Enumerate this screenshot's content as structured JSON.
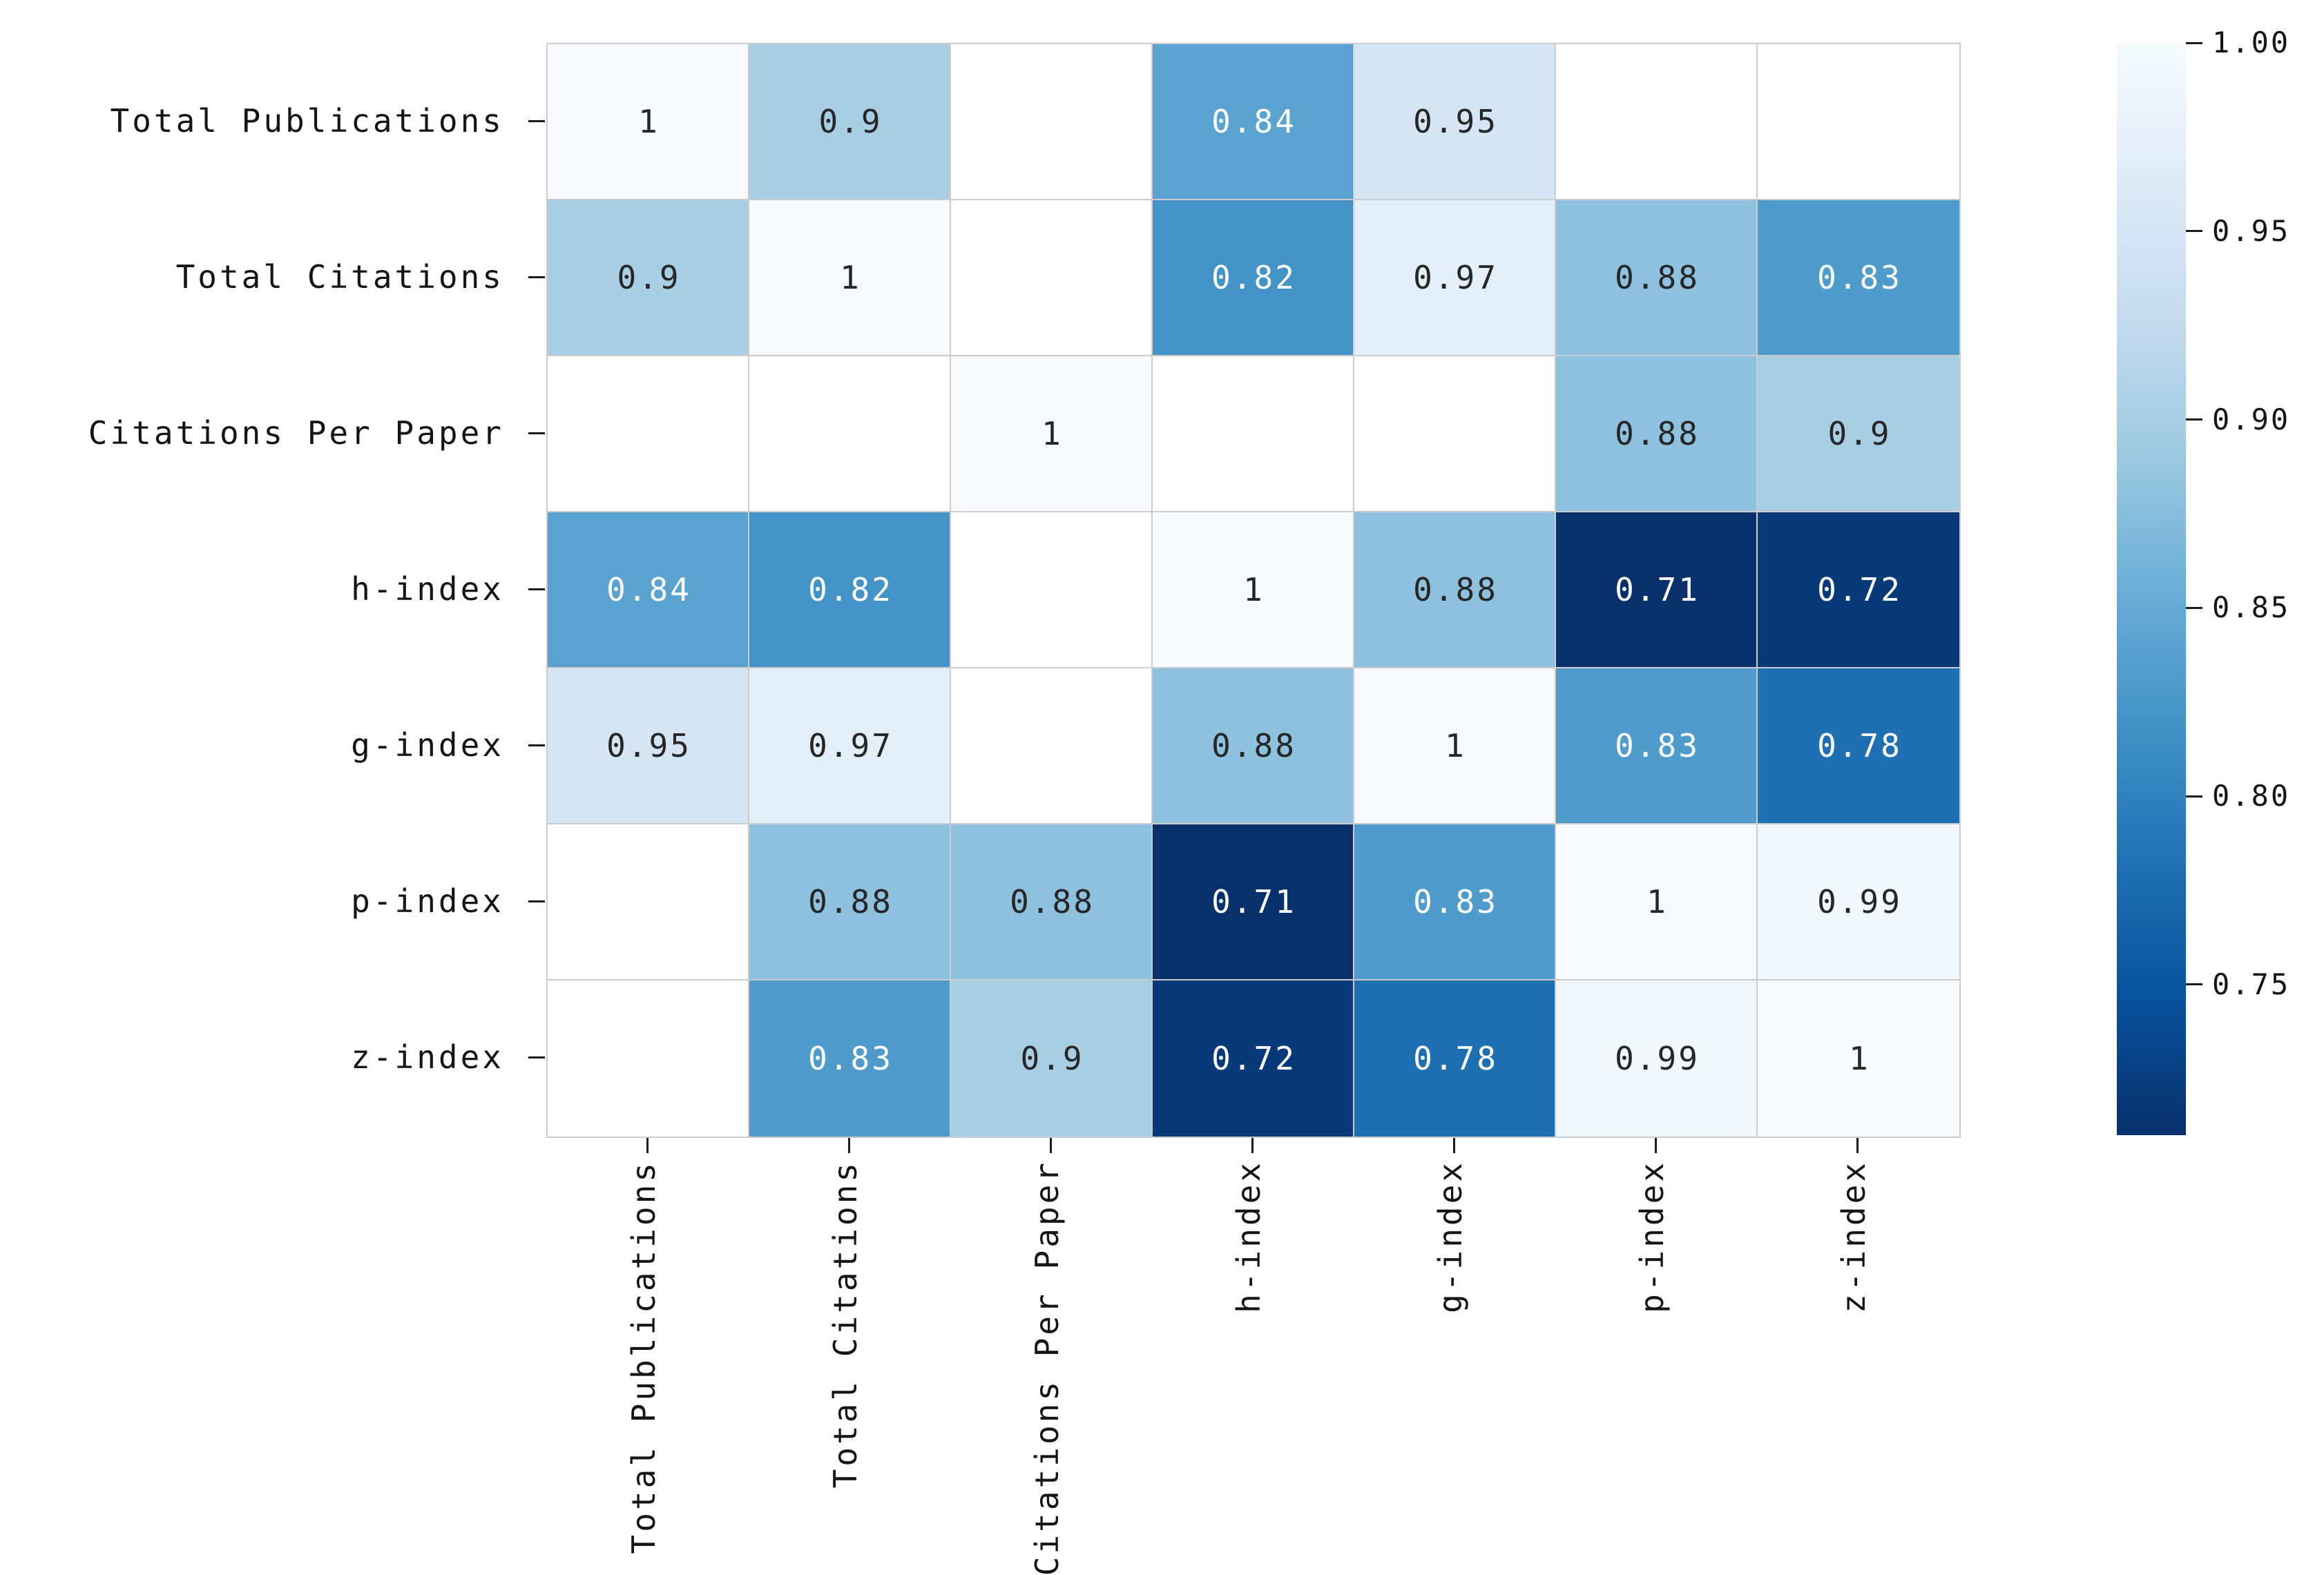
{
  "chart_data": {
    "type": "heatmap",
    "title": "",
    "xlabel": "",
    "ylabel": "",
    "labels": [
      "Total Publications",
      "Total Citations",
      "Citations Per Paper",
      "h-index",
      "g-index",
      "p-index",
      "z-index"
    ],
    "matrix": [
      [
        1,
        0.9,
        null,
        0.84,
        0.95,
        null,
        null
      ],
      [
        0.9,
        1,
        null,
        0.82,
        0.97,
        0.88,
        0.83
      ],
      [
        null,
        null,
        1,
        null,
        null,
        0.88,
        0.9
      ],
      [
        0.84,
        0.82,
        null,
        1,
        0.88,
        0.71,
        0.72
      ],
      [
        0.95,
        0.97,
        null,
        0.88,
        1,
        0.83,
        0.78
      ],
      [
        null,
        0.88,
        0.88,
        0.71,
        0.83,
        1,
        0.99
      ],
      [
        null,
        0.83,
        0.9,
        0.72,
        0.78,
        0.99,
        1
      ]
    ],
    "masked_cells_color": "#ffffff",
    "colormap": "Blues_r",
    "colormap_anchors": [
      "#f7fbff",
      "#deebf7",
      "#c6dbef",
      "#9ecae1",
      "#6baed6",
      "#4292c6",
      "#2171b5",
      "#08519c",
      "#08306b"
    ],
    "vmin": 0.71,
    "vmax": 1.0,
    "colorbar": {
      "position": "right",
      "ticks": [
        {
          "value": 1.0,
          "label": "1.00"
        },
        {
          "value": 0.95,
          "label": "0.95"
        },
        {
          "value": 0.9,
          "label": "0.90"
        },
        {
          "value": 0.85,
          "label": "0.85"
        },
        {
          "value": 0.8,
          "label": "0.80"
        },
        {
          "value": 0.75,
          "label": "0.75"
        }
      ]
    },
    "annotation_text_dark": "#262626",
    "annotation_text_light": "#ffffff",
    "grid_line_color": "#cccccc",
    "background": "#ffffff",
    "grid_on": true
  }
}
